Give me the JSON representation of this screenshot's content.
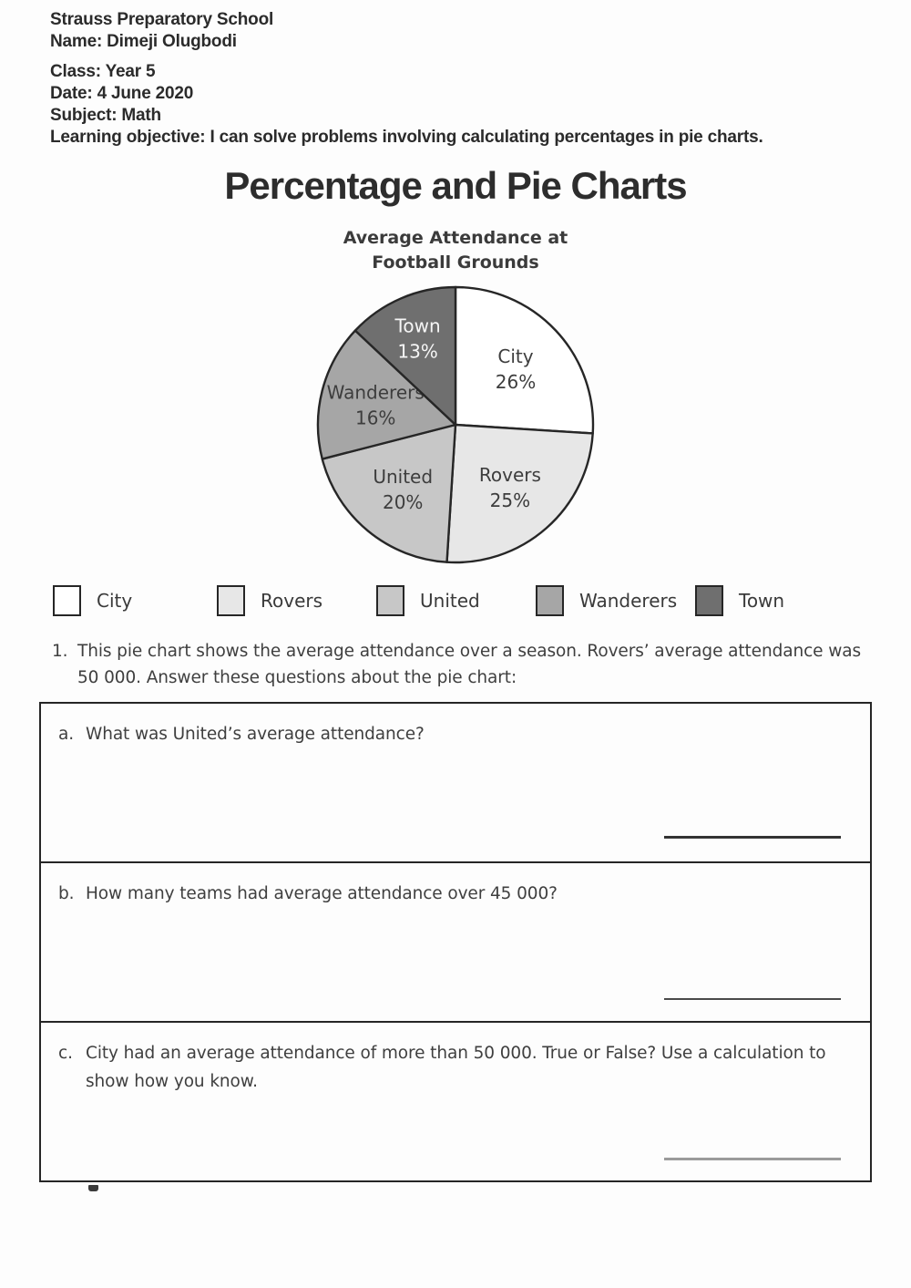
{
  "header": {
    "school": "Strauss Preparatory School",
    "name": "Name: Dimeji Olugbodi",
    "class": "Class: Year 5",
    "date": "Date: 4 June 2020",
    "subject": "Subject: Math",
    "objective": "Learning objective: I can solve problems involving calculating percentages in pie charts."
  },
  "title": "Percentage and Pie Charts",
  "chart_data": {
    "type": "pie",
    "title_lines": [
      "Average Attendance at",
      "Football Grounds"
    ],
    "start_at": "top",
    "direction": "clockwise",
    "unit": "%",
    "stroke_color": "#262626",
    "legend_position": "bottom",
    "segments": [
      {
        "label": "City",
        "value": 26,
        "display": "26%",
        "color": "#ffffff",
        "label_color": "#3d3d3d"
      },
      {
        "label": "Rovers",
        "value": 25,
        "display": "25%",
        "color": "#e7e7e7",
        "label_color": "#3d3d3d"
      },
      {
        "label": "United",
        "value": 20,
        "display": "20%",
        "color": "#c7c7c7",
        "label_color": "#3d3d3d"
      },
      {
        "label": "Wanderers",
        "value": 16,
        "display": "16%",
        "color": "#a6a6a6",
        "label_color": "#3d3d3d"
      },
      {
        "label": "Town",
        "value": 13,
        "display": "13%",
        "color": "#6f6f6f",
        "label_color": "#f6f6f6"
      }
    ]
  },
  "intro": {
    "number": "1.",
    "text": "This pie chart shows the average attendance over a season. Rovers’ average attendance was 50 000. Answer these questions about the pie chart:"
  },
  "questions": [
    {
      "letter": "a.",
      "text": "What was United’s average attendance?"
    },
    {
      "letter": "b.",
      "text": "How many teams had average attendance over 45 000?"
    },
    {
      "letter": "c.",
      "text": "City had an average attendance of more than 50 000. True or False? Use a calculation to show how you know."
    }
  ]
}
